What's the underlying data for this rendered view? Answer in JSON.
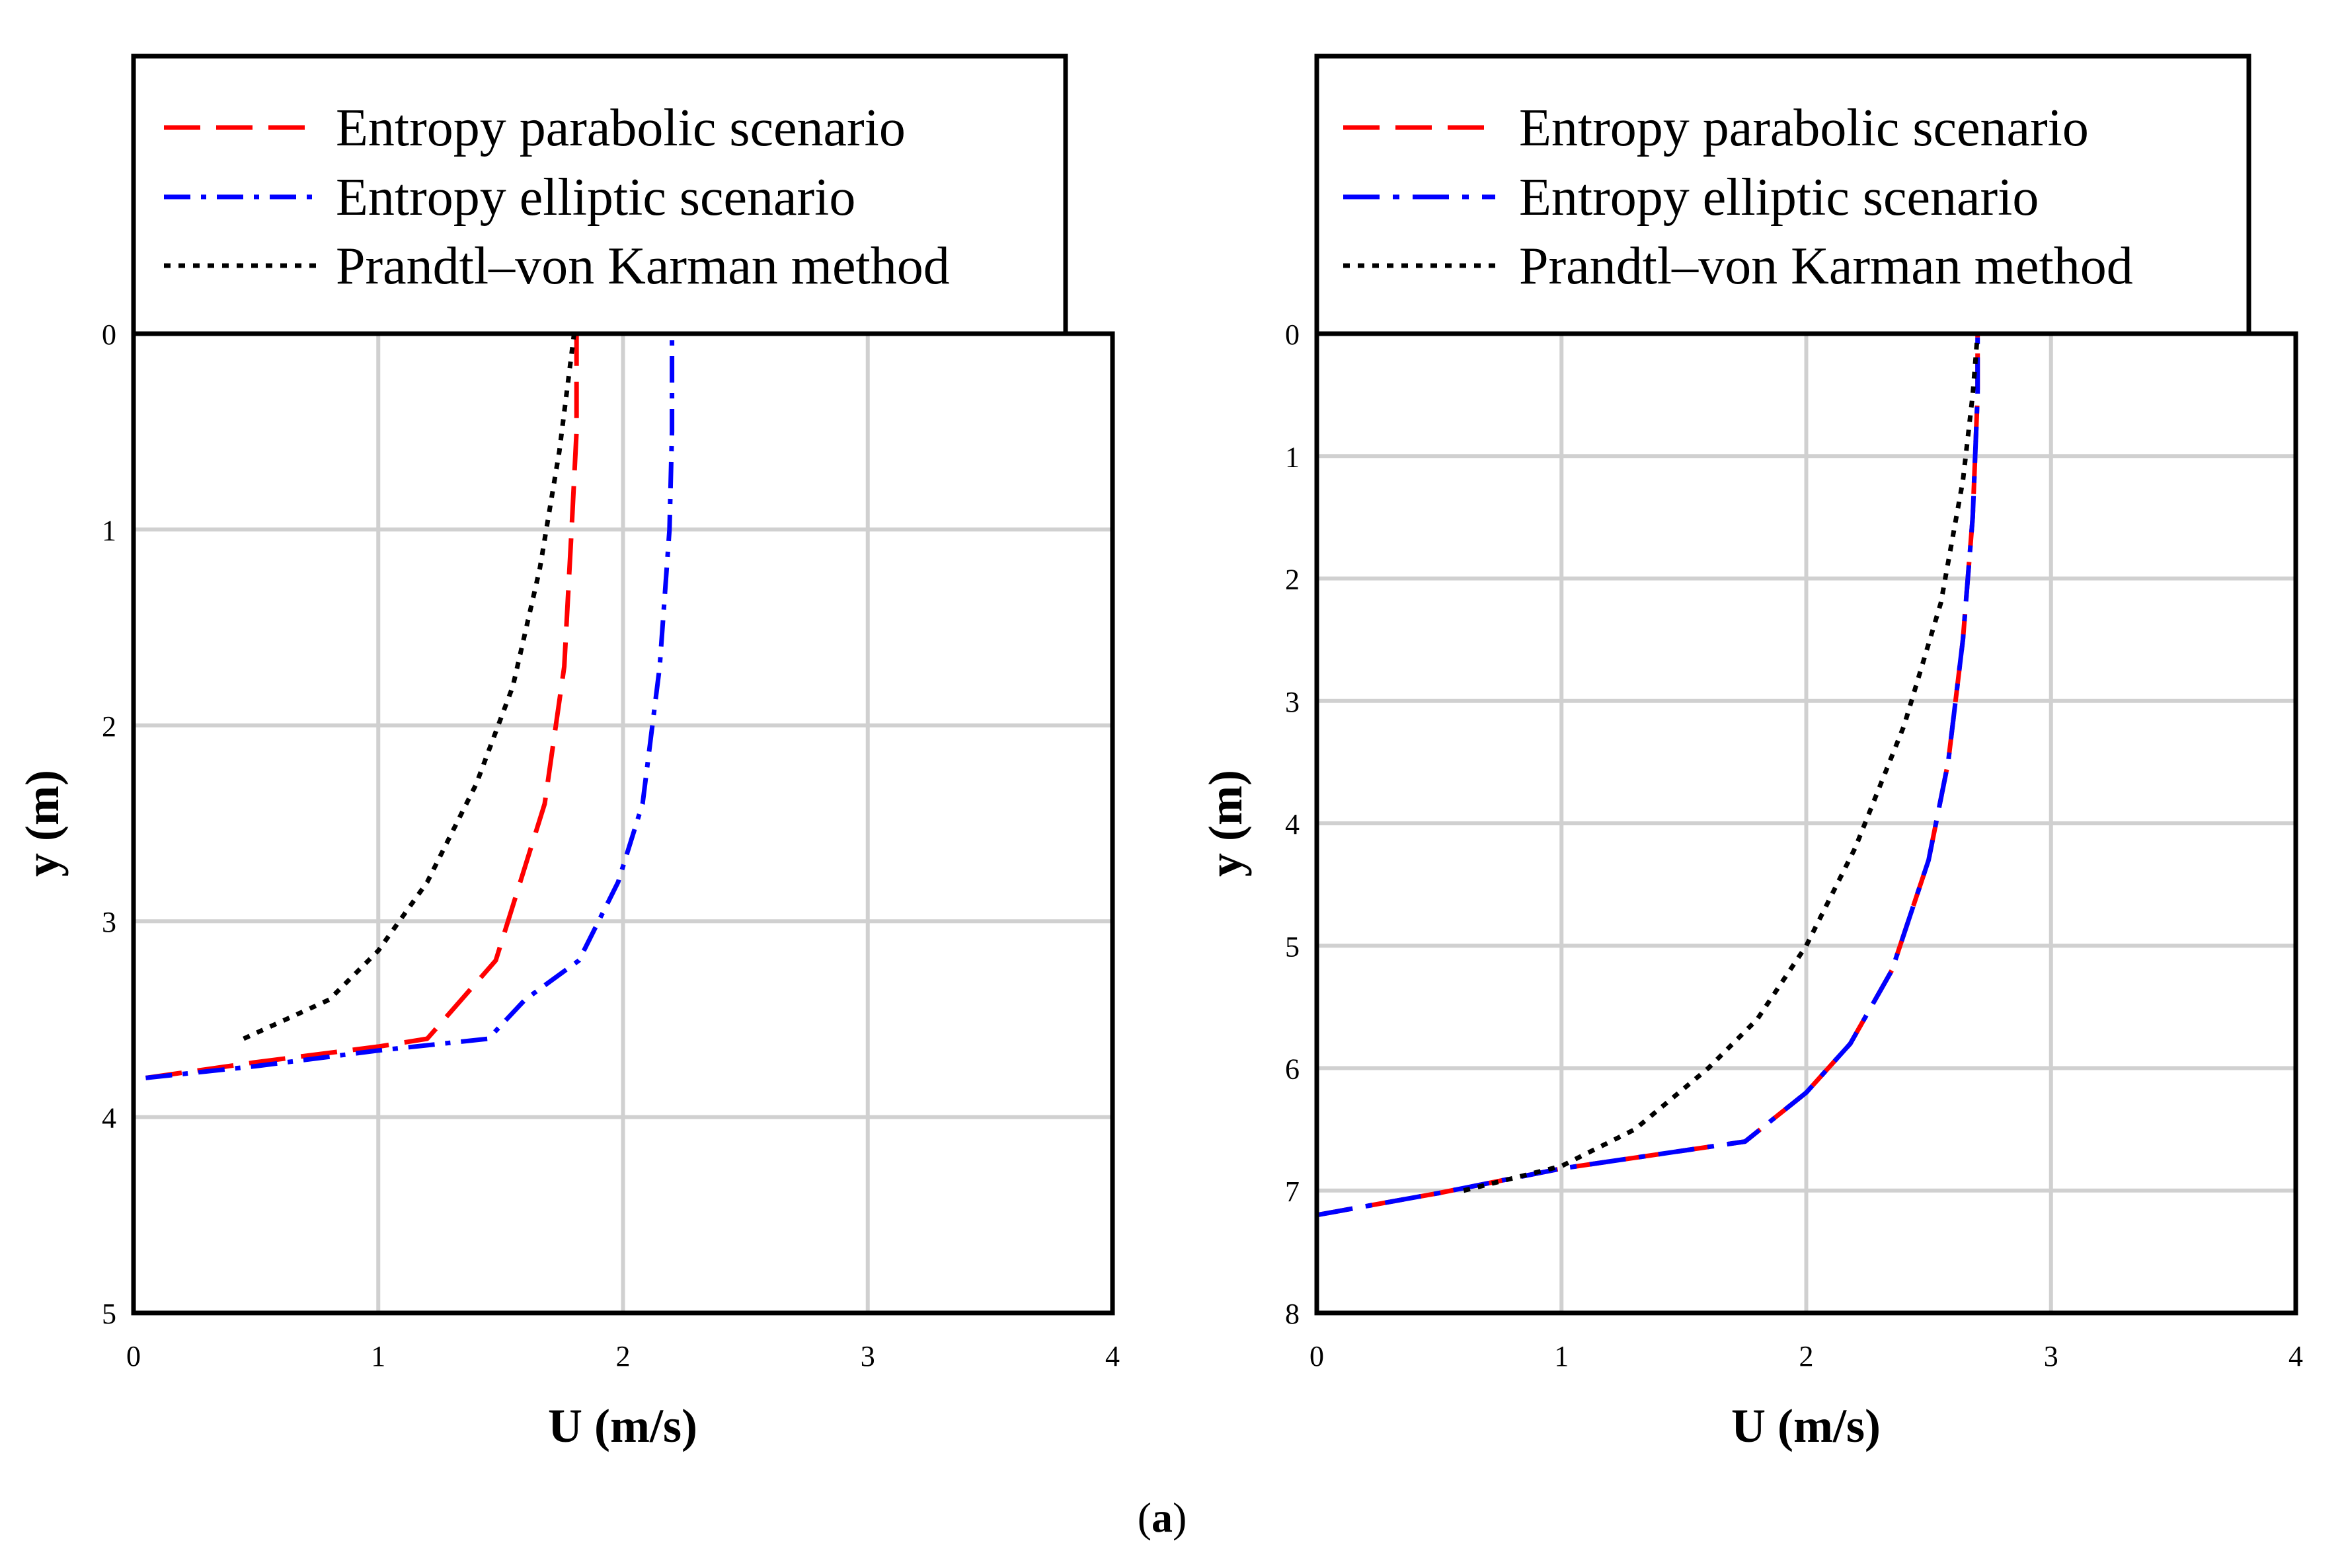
{
  "chart_data": [
    {
      "type": "line",
      "orientation": "depth-profile",
      "xlabel": "U (m/s)",
      "ylabel": "y (m)",
      "xlim": [
        0,
        4
      ],
      "ylim": [
        0,
        5
      ],
      "y_inverted": true,
      "x_ticks": [
        "0",
        "1",
        "2",
        "3",
        "4"
      ],
      "y_ticks": [
        "0",
        "1",
        "2",
        "3",
        "4",
        "5"
      ],
      "grid": true,
      "legend_position": "above plot, left",
      "series": [
        {
          "name": "Entropy parabolic scenario",
          "color": "#ff0000",
          "dash": "long-dash",
          "points": [
            [
              0.05,
              3.8
            ],
            [
              0.5,
              3.72
            ],
            [
              1.0,
              3.64
            ],
            [
              1.2,
              3.6
            ],
            [
              1.48,
              3.2
            ],
            [
              1.68,
              2.4
            ],
            [
              1.76,
              1.7
            ],
            [
              1.79,
              1.0
            ],
            [
              1.81,
              0.5
            ],
            [
              1.81,
              0.0
            ]
          ]
        },
        {
          "name": "Entropy elliptic scenario",
          "color": "#0000ff",
          "dash": "dash-dot",
          "points": [
            [
              0.05,
              3.8
            ],
            [
              0.5,
              3.74
            ],
            [
              1.0,
              3.66
            ],
            [
              1.45,
              3.6
            ],
            [
              1.6,
              3.4
            ],
            [
              1.82,
              3.2
            ],
            [
              1.98,
              2.8
            ],
            [
              2.08,
              2.4
            ],
            [
              2.15,
              1.7
            ],
            [
              2.19,
              1.0
            ],
            [
              2.2,
              0.5
            ],
            [
              2.2,
              0.0
            ]
          ]
        },
        {
          "name": "Prandtl–von Karman method",
          "color": "#000000",
          "dash": "dotted",
          "points": [
            [
              0.45,
              3.6
            ],
            [
              0.8,
              3.4
            ],
            [
              1.0,
              3.15
            ],
            [
              1.2,
              2.8
            ],
            [
              1.4,
              2.3
            ],
            [
              1.55,
              1.8
            ],
            [
              1.66,
              1.2
            ],
            [
              1.74,
              0.6
            ],
            [
              1.8,
              0.0
            ]
          ]
        }
      ]
    },
    {
      "type": "line",
      "orientation": "depth-profile",
      "xlabel": "U (m/s)",
      "ylabel": "y (m)",
      "xlim": [
        0,
        4
      ],
      "ylim": [
        0,
        8
      ],
      "y_inverted": true,
      "x_ticks": [
        "0",
        "1",
        "2",
        "3",
        "4"
      ],
      "y_ticks": [
        "0",
        "1",
        "2",
        "3",
        "4",
        "5",
        "6",
        "7",
        "8"
      ],
      "grid": true,
      "legend_position": "above plot, left",
      "series": [
        {
          "name": "Entropy parabolic scenario",
          "color": "#ff0000",
          "dash": "long-dash",
          "points": [
            [
              0.0,
              7.2
            ],
            [
              0.5,
              7.02
            ],
            [
              1.0,
              6.82
            ],
            [
              1.75,
              6.6
            ],
            [
              2.0,
              6.2
            ],
            [
              2.18,
              5.8
            ],
            [
              2.35,
              5.2
            ],
            [
              2.5,
              4.3
            ],
            [
              2.58,
              3.5
            ],
            [
              2.64,
              2.5
            ],
            [
              2.68,
              1.5
            ],
            [
              2.7,
              0.5
            ],
            [
              2.7,
              0.0
            ]
          ]
        },
        {
          "name": "Entropy elliptic scenario",
          "color": "#0000ff",
          "dash": "long-dash-dot",
          "points": [
            [
              0.0,
              7.2
            ],
            [
              0.5,
              7.02
            ],
            [
              1.0,
              6.82
            ],
            [
              1.75,
              6.6
            ],
            [
              2.0,
              6.2
            ],
            [
              2.18,
              5.8
            ],
            [
              2.35,
              5.2
            ],
            [
              2.5,
              4.3
            ],
            [
              2.58,
              3.5
            ],
            [
              2.64,
              2.5
            ],
            [
              2.68,
              1.5
            ],
            [
              2.7,
              0.5
            ],
            [
              2.7,
              0.0
            ]
          ]
        },
        {
          "name": "Prandtl–von Karman method",
          "color": "#000000",
          "dash": "dotted",
          "points": [
            [
              0.6,
              7.0
            ],
            [
              1.0,
              6.8
            ],
            [
              1.3,
              6.5
            ],
            [
              1.6,
              6.0
            ],
            [
              1.8,
              5.6
            ],
            [
              2.0,
              5.0
            ],
            [
              2.2,
              4.2
            ],
            [
              2.4,
              3.2
            ],
            [
              2.55,
              2.2
            ],
            [
              2.64,
              1.2
            ],
            [
              2.68,
              0.5
            ],
            [
              2.7,
              0.0
            ]
          ]
        }
      ]
    }
  ],
  "caption": {
    "open": "(",
    "letter": "a",
    "close": ")"
  }
}
